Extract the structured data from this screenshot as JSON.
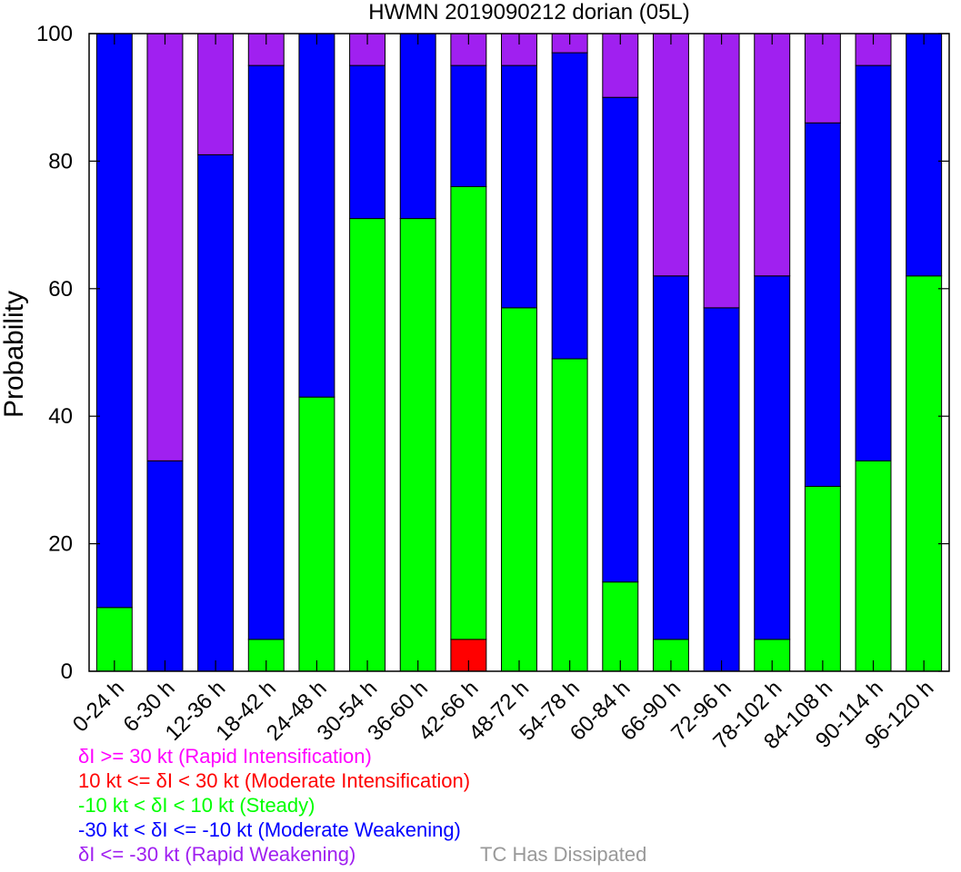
{
  "chart_data": {
    "type": "bar",
    "stacked": true,
    "title": "HWMN 2019090212 dorian (05L)",
    "xlabel": "",
    "ylabel": "Probability",
    "ylim": [
      0,
      100
    ],
    "yticks": [
      0,
      20,
      40,
      60,
      80,
      100
    ],
    "grid": false,
    "categories": [
      "0-24 h",
      "6-30 h",
      "12-36 h",
      "18-42 h",
      "24-48 h",
      "30-54 h",
      "36-60 h",
      "42-66 h",
      "48-72 h",
      "54-78 h",
      "60-84 h",
      "66-90 h",
      "72-96 h",
      "78-102 h",
      "84-108 h",
      "90-114 h",
      "96-120 h"
    ],
    "series": [
      {
        "key": "ri",
        "color": "#FF00FF",
        "values": [
          0,
          0,
          0,
          0,
          0,
          0,
          0,
          0,
          0,
          0,
          0,
          0,
          0,
          0,
          0,
          0,
          0
        ]
      },
      {
        "key": "mi",
        "color": "#FF0000",
        "values": [
          0,
          0,
          0,
          0,
          0,
          0,
          0,
          5,
          0,
          0,
          0,
          0,
          0,
          0,
          0,
          0,
          0
        ]
      },
      {
        "key": "steady",
        "color": "#00FF00",
        "values": [
          10,
          0,
          0,
          5,
          43,
          71,
          71,
          71,
          57,
          49,
          14,
          5,
          0,
          5,
          29,
          33,
          62
        ]
      },
      {
        "key": "mw",
        "color": "#0000FF",
        "values": [
          90,
          33,
          81,
          90,
          57,
          24,
          29,
          19,
          38,
          48,
          76,
          57,
          57,
          57,
          57,
          62,
          38
        ]
      },
      {
        "key": "rw",
        "color": "#A020F0",
        "values": [
          0,
          67,
          19,
          5,
          0,
          5,
          0,
          5,
          5,
          3,
          10,
          38,
          43,
          38,
          14,
          5,
          0
        ]
      },
      {
        "key": "dissipated",
        "color": "#999999",
        "values": [
          0,
          0,
          0,
          0,
          0,
          0,
          0,
          0,
          0,
          0,
          0,
          0,
          0,
          0,
          0,
          0,
          0
        ]
      }
    ]
  },
  "legend": [
    {
      "text": "δI >= 30 kt (Rapid Intensification)",
      "color": "#FF00FF"
    },
    {
      "text": "10 kt <= δI < 30 kt (Moderate Intensification)",
      "color": "#FF0000"
    },
    {
      "text": "-10 kt < δI < 10 kt (Steady)",
      "color": "#00FF00"
    },
    {
      "text": "-30 kt < δI <= -10 kt (Moderate Weakening)",
      "color": "#0000FF"
    },
    {
      "text": "δI <= -30 kt (Rapid Weakening)",
      "color": "#A020F0"
    }
  ],
  "dissipated_label": {
    "text": "TC Has Dissipated",
    "color": "#999999"
  }
}
